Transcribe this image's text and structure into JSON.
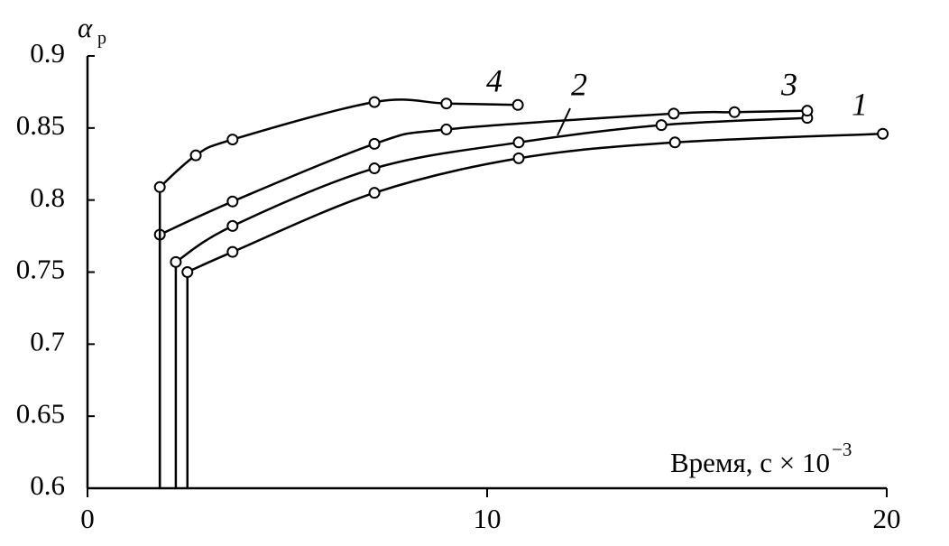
{
  "chart_data": {
    "type": "line",
    "y_label": "α",
    "y_label_sub": "р",
    "x_label": "Время, с × 10",
    "x_label_sup": "−3",
    "xlim": [
      0,
      20
    ],
    "xticks": [
      0,
      10,
      20
    ],
    "ylim": [
      0.6,
      0.9
    ],
    "yticks": [
      0.6,
      0.65,
      0.7,
      0.75,
      0.8,
      0.85,
      0.9
    ],
    "grid": false,
    "series": [
      {
        "name": "1",
        "color": "#000000",
        "x": [
          2.5,
          3.63,
          7.18,
          10.79,
          14.7,
          19.9
        ],
        "values": [
          0.75,
          0.764,
          0.805,
          0.829,
          0.84,
          0.846
        ]
      },
      {
        "name": "2",
        "color": "#000000",
        "x": [
          2.21,
          3.63,
          7.18,
          10.79,
          14.36,
          18.01
        ],
        "values": [
          0.757,
          0.782,
          0.822,
          0.84,
          0.852,
          0.857
        ]
      },
      {
        "name": "3",
        "color": "#000000",
        "x": [
          1.81,
          3.63,
          7.18,
          8.98,
          14.67,
          16.19,
          18.01
        ],
        "values": [
          0.776,
          0.799,
          0.839,
          0.849,
          0.86,
          0.861,
          0.862
        ]
      },
      {
        "name": "4",
        "color": "#000000",
        "x": [
          1.81,
          2.71,
          3.63,
          7.18,
          8.98,
          10.77
        ],
        "values": [
          0.809,
          0.831,
          0.842,
          0.868,
          0.867,
          0.866
        ]
      }
    ]
  }
}
